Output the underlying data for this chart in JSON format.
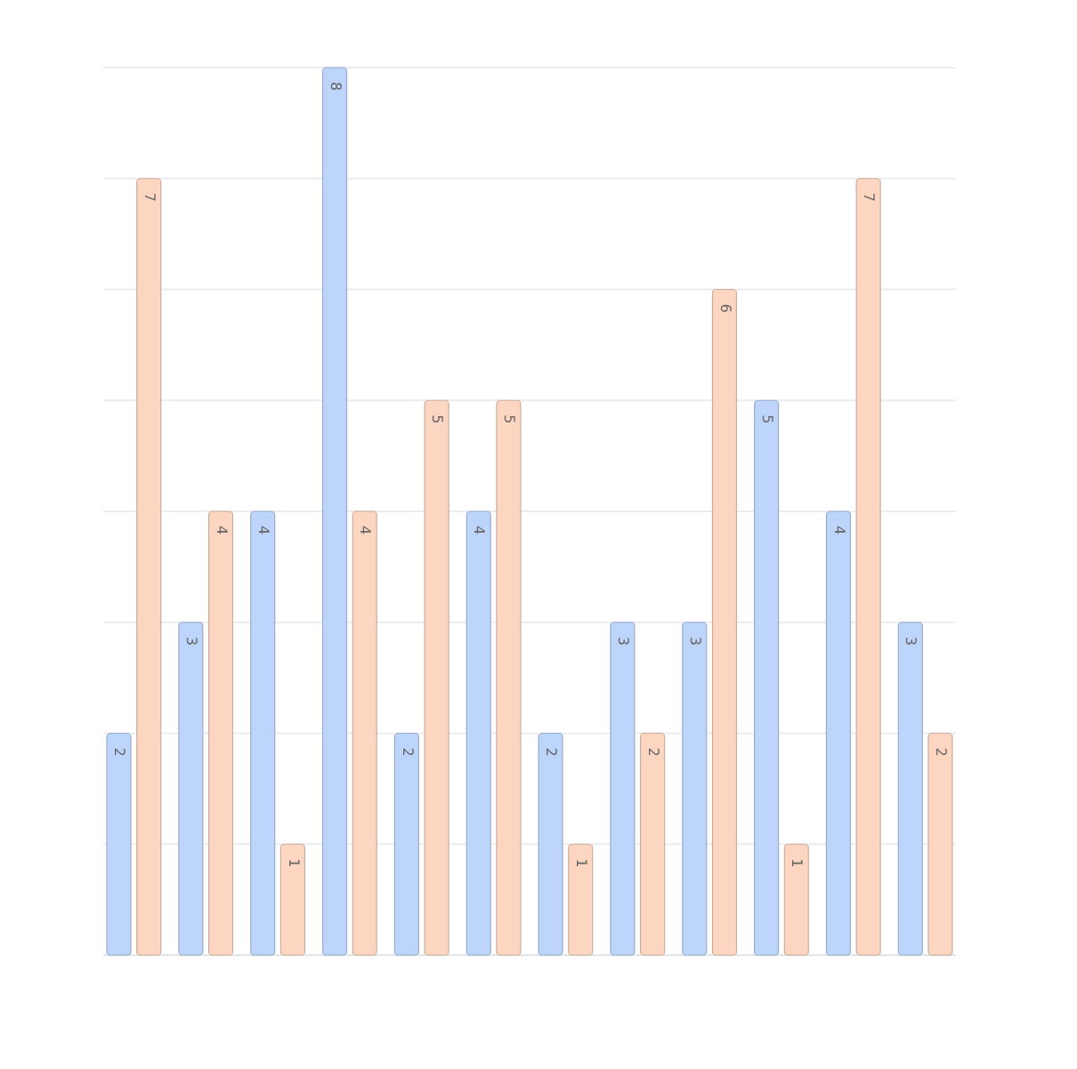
{
  "chart_data": {
    "type": "bar",
    "categories": [
      null,
      null,
      null,
      null,
      null,
      null,
      null,
      null,
      null,
      null,
      null,
      null
    ],
    "series": [
      {
        "color": "#bed5fb",
        "values": [
          2,
          3,
          4,
          8,
          2,
          4,
          2,
          3,
          3,
          5,
          4,
          3
        ]
      },
      {
        "color": "#fdd6c1",
        "values": [
          7,
          4,
          1,
          4,
          5,
          5,
          1,
          2,
          6,
          1,
          7,
          2
        ]
      }
    ],
    "ylim": [
      0,
      8
    ],
    "yticks": [
      {
        "value": 0,
        "label": null
      },
      {
        "value": 1,
        "label": null
      },
      {
        "value": 2,
        "label": null
      },
      {
        "value": 3,
        "label": null
      },
      {
        "value": 4,
        "label": null
      },
      {
        "value": 5,
        "label": null
      },
      {
        "value": 6,
        "label": null
      },
      {
        "value": 7,
        "label": null
      },
      {
        "value": 8,
        "label": null
      }
    ],
    "grid": "y",
    "data_labels": true
  }
}
